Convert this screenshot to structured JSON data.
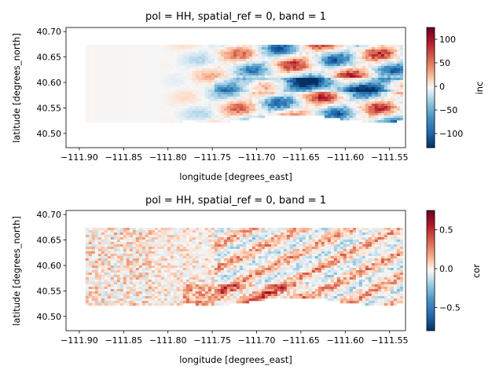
{
  "chart_data": [
    {
      "type": "heatmap",
      "title": "pol = HH, spatial_ref = 0, band = 1",
      "xlabel": "longitude [degrees_east]",
      "ylabel": "latitude [degrees_north]",
      "xlim": [
        -111.915,
        -111.532
      ],
      "ylim": [
        40.472,
        40.708
      ],
      "xticks": [
        -111.9,
        -111.85,
        -111.8,
        -111.75,
        -111.7,
        -111.65,
        -111.6,
        -111.55
      ],
      "xtick_labels": [
        "−111.90",
        "−111.85",
        "−111.80",
        "−111.75",
        "−111.70",
        "−111.65",
        "−111.60",
        "−111.55"
      ],
      "yticks": [
        40.5,
        40.55,
        40.6,
        40.65,
        40.7
      ],
      "ytick_labels": [
        "40.50",
        "40.55",
        "40.60",
        "40.65",
        "40.70"
      ],
      "data_extent": {
        "x": [
          -111.893,
          -111.532
        ],
        "y": [
          40.518,
          40.674
        ]
      },
      "colorbar": {
        "label": "inc",
        "colormap": "RdBu_r",
        "vmin": -130,
        "vmax": 125,
        "ticks": [
          100,
          50,
          0,
          -50,
          -100
        ],
        "tick_labels": [
          "100",
          "50",
          "0",
          "−50",
          "−100"
        ]
      },
      "variable": "inc"
    },
    {
      "type": "heatmap",
      "title": "pol = HH, spatial_ref = 0, band = 1",
      "xlabel": "longitude [degrees_east]",
      "ylabel": "latitude [degrees_north]",
      "xlim": [
        -111.915,
        -111.532
      ],
      "ylim": [
        40.472,
        40.708
      ],
      "xticks": [
        -111.9,
        -111.85,
        -111.8,
        -111.75,
        -111.7,
        -111.65,
        -111.6,
        -111.55
      ],
      "xtick_labels": [
        "−111.90",
        "−111.85",
        "−111.80",
        "−111.75",
        "−111.70",
        "−111.65",
        "−111.60",
        "−111.55"
      ],
      "yticks": [
        40.5,
        40.55,
        40.6,
        40.65,
        40.7
      ],
      "ytick_labels": [
        "40.50",
        "40.55",
        "40.60",
        "40.65",
        "40.70"
      ],
      "data_extent": {
        "x": [
          -111.893,
          -111.532
        ],
        "y": [
          40.518,
          40.674
        ]
      },
      "colorbar": {
        "label": "cor",
        "colormap": "RdBu_r",
        "vmin": -0.8,
        "vmax": 0.75,
        "ticks": [
          0.5,
          0.0,
          -0.5
        ],
        "tick_labels": [
          "0.5",
          "0.0",
          "−0.5"
        ]
      },
      "variable": "cor"
    }
  ]
}
